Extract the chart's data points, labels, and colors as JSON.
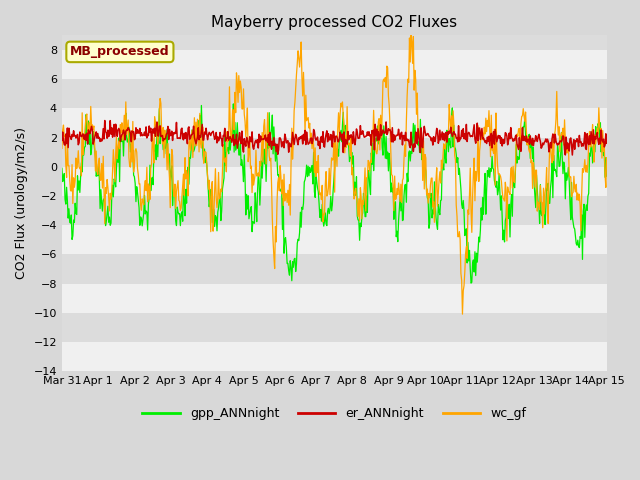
{
  "title": "Mayberry processed CO2 Fluxes",
  "ylabel": "CO2 Flux (urology/m2/s)",
  "ylim": [
    -14,
    9
  ],
  "yticks": [
    -14,
    -12,
    -10,
    -8,
    -6,
    -4,
    -2,
    0,
    2,
    4,
    6,
    8
  ],
  "xtick_labels": [
    "Mar 31",
    "Apr 1",
    "Apr 2",
    "Apr 3",
    "Apr 4",
    "Apr 5",
    "Apr 6",
    "Apr 7",
    "Apr 8",
    "Apr 9",
    "Apr 10",
    "Apr 11",
    "Apr 12",
    "Apr 13",
    "Apr 14",
    "Apr 15"
  ],
  "legend_labels": [
    "gpp_ANNnight",
    "er_ANNnight",
    "wc_gf"
  ],
  "legend_colors": [
    "#00ee00",
    "#cc0000",
    "#ffa500"
  ],
  "line_colors": [
    "#00ee00",
    "#cc0000",
    "#ffa500"
  ],
  "inset_label": "MB_processed",
  "inset_text_color": "#8b0000",
  "inset_bg_color": "#ffffcc",
  "inset_edge_color": "#aaaa00",
  "background_color": "#d8d8d8",
  "plot_bg_light": "#f0f0f0",
  "plot_bg_dark": "#dcdcdc",
  "title_fontsize": 11,
  "axis_fontsize": 9,
  "tick_fontsize": 8,
  "n_points": 700,
  "seed": 42
}
